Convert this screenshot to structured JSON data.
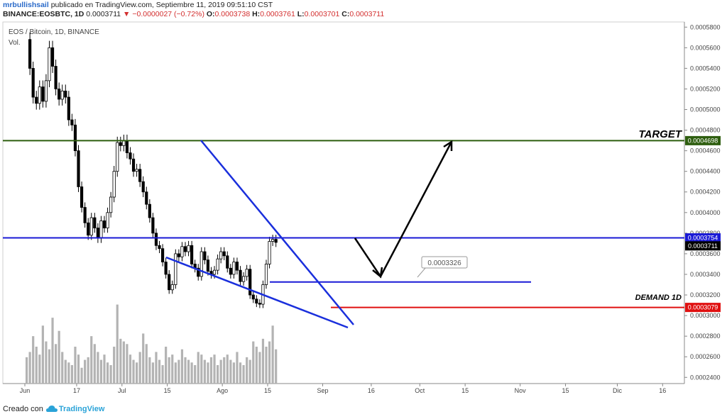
{
  "header": {
    "user": "mrbullishsail",
    "published_text": "publicado en TradingView.com, Septiembre 11, 2019 09:51:10 CST",
    "symbol": "BINANCE:EOSBTC, 1D",
    "last": "0.0003711",
    "change": "▼ −0.0000027 (−0.72%)",
    "o_label": "O:",
    "o": "0.0003738",
    "h_label": "H:",
    "h": "0.0003761",
    "l_label": "L:",
    "l": "0.0003701",
    "c_label": "C:",
    "c": "0.0003711"
  },
  "legend": {
    "title": "EOS / Bitcoin, 1D, BINANCE",
    "vol": "Vol."
  },
  "footer": {
    "created_with": "Creado con",
    "brand": "TradingView"
  },
  "colors": {
    "green_line": "#2e5e0f",
    "blue_line": "#1a1ad6",
    "red_line": "#e01010",
    "wedge": "#1a2fdc",
    "candle": "#000000",
    "volume": "#b3b3b3"
  },
  "chart_data": {
    "type": "candlestick",
    "ylim": [
      0.000234,
      0.000585
    ],
    "y_ticks": [
      "0.0005800",
      "0.0005600",
      "0.0005400",
      "0.0005200",
      "0.0005000",
      "0.0004800",
      "0.0004600",
      "0.0004400",
      "0.0004200",
      "0.0004000",
      "0.0003800",
      "0.0003600",
      "0.0003400",
      "0.0003200",
      "0.0003000",
      "0.0002800",
      "0.0002600",
      "0.0002400"
    ],
    "x_labels": [
      {
        "day": 0,
        "label": "Jun"
      },
      {
        "day": 16,
        "label": "17"
      },
      {
        "day": 30,
        "label": "Jul"
      },
      {
        "day": 44,
        "label": "15"
      },
      {
        "day": 61,
        "label": "Ago"
      },
      {
        "day": 75,
        "label": "15"
      },
      {
        "day": 92,
        "label": "Sep"
      },
      {
        "day": 107,
        "label": "16"
      },
      {
        "day": 122,
        "label": "Oct"
      },
      {
        "day": 136,
        "label": "15"
      },
      {
        "day": 153,
        "label": "Nov"
      },
      {
        "day": 167,
        "label": "15"
      },
      {
        "day": 183,
        "label": "Dic"
      },
      {
        "day": 197,
        "label": "16"
      }
    ],
    "closes": [
      0.000568,
      0.00054,
      0.000512,
      0.000506,
      0.000522,
      0.000508,
      0.000528,
      0.00056,
      0.000542,
      0.00052,
      0.00051,
      0.000518,
      0.000512,
      0.00049,
      0.000485,
      0.00046,
      0.000425,
      0.000405,
      0.00039,
      0.000378,
      0.000395,
      0.000385,
      0.000375,
      0.000392,
      0.000385,
      0.0004,
      0.000415,
      0.00044,
      0.000468,
      0.000465,
      0.00047,
      0.000458,
      0.000452,
      0.00044,
      0.000442,
      0.00043,
      0.00042,
      0.000408,
      0.000395,
      0.00038,
      0.000368,
      0.000365,
      0.000352,
      0.00034,
      0.000325,
      0.00033,
      0.00036,
      0.000357,
      0.000367,
      0.000362,
      0.000368,
      0.00035,
      0.000346,
      0.000338,
      0.000362,
      0.000354,
      0.000343,
      0.00034,
      0.000344,
      0.000355,
      0.000362,
      0.000358,
      0.000346,
      0.00034,
      0.000352,
      0.000344,
      0.000333,
      0.000338,
      0.000345,
      0.00032,
      0.000316,
      0.000312,
      0.000311,
      0.00033,
      0.00035,
      0.000372,
      0.000374,
      0.000371
    ],
    "volume": [
      10,
      12,
      18,
      14,
      11,
      22,
      16,
      13,
      25,
      15,
      20,
      12,
      9,
      8,
      7,
      14,
      11,
      6,
      9,
      10,
      18,
      15,
      12,
      9,
      11,
      8,
      7,
      14,
      30,
      17,
      16,
      15,
      11,
      9,
      8,
      12,
      19,
      15,
      10,
      8,
      12,
      9,
      7,
      14,
      10,
      11,
      8,
      9,
      13,
      10,
      9,
      8,
      7,
      12,
      11,
      9,
      8,
      10,
      11,
      7,
      9,
      10,
      11,
      9,
      8,
      12,
      8,
      7,
      10,
      9,
      16,
      14,
      12,
      17,
      14,
      16,
      22,
      13
    ],
    "levels": {
      "target": {
        "label": "TARGET",
        "value": "0.0004698",
        "y": 0.0004698
      },
      "resistance": {
        "value": "0.0003754",
        "y": 0.0003754
      },
      "last_price": {
        "value": "0.0003711",
        "y": 0.0003711
      },
      "support_mid": {
        "value": "0.0003326",
        "y": 0.0003326
      },
      "demand": {
        "label": "DEMAND 1D",
        "value": "0.0003079",
        "y": 0.0003079
      }
    }
  }
}
